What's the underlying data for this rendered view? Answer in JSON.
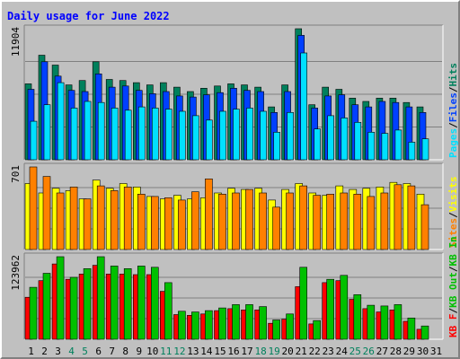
{
  "chart_data": {
    "type": "bar",
    "title": "Daily usage for June 2022",
    "days": [
      "1",
      "2",
      "3",
      "4",
      "5",
      "6",
      "7",
      "8",
      "9",
      "10",
      "11",
      "12",
      "13",
      "14",
      "15",
      "16",
      "17",
      "18",
      "19",
      "20",
      "21",
      "22",
      "23",
      "24",
      "25",
      "26",
      "27",
      "28",
      "29",
      "30",
      "31"
    ],
    "weekend_days": [
      "4",
      "5",
      "11",
      "12",
      "18",
      "19",
      "25",
      "26"
    ],
    "colors": {
      "hits": "#00805c",
      "files": "#0040ff",
      "pages": "#00e0ff",
      "visits": "#ffff00",
      "sites": "#ff8000",
      "kb_in": "#00c000",
      "kb_out": "#ff0000",
      "title": "#0000ff",
      "weekday_label": "#000000",
      "weekend_label": "#00805c",
      "gridline": "#808080"
    },
    "panels": [
      {
        "id": "usage",
        "max_label": "11904",
        "max_value": 11904,
        "legend": [
          {
            "text": "Hits",
            "color": "#00805c"
          },
          {
            "text": "Files",
            "color": "#0040ff"
          },
          {
            "text": "Pages",
            "color": "#00e0ff"
          }
        ],
        "separators": [
          "/",
          "/"
        ],
        "series": [
          {
            "name": "Hits",
            "color": "#00805c",
            "values": [
              6900,
              9500,
              8600,
              6800,
              7200,
              8900,
              7300,
              7200,
              7000,
              6800,
              7000,
              6600,
              6200,
              6500,
              6700,
              6900,
              6800,
              6600,
              4800,
              6800,
              11904,
              5000,
              6600,
              6400,
              5600,
              5300,
              5600,
              5600,
              5200,
              4800,
              0
            ]
          },
          {
            "name": "Files",
            "color": "#0040ff",
            "values": [
              6400,
              8900,
              7600,
              6300,
              6200,
              7800,
              6600,
              6700,
              6300,
              6000,
              6200,
              5800,
              5700,
              5900,
              6100,
              6500,
              6300,
              6200,
              4300,
              6200,
              11300,
              4700,
              5800,
              5900,
              5000,
              4800,
              5300,
              5200,
              4800,
              4300,
              0
            ]
          },
          {
            "name": "Pages",
            "color": "#00e0ff",
            "values": [
              3500,
              5000,
              7000,
              4700,
              5300,
              5200,
              4700,
              4500,
              4800,
              4700,
              4600,
              4400,
              4000,
              3600,
              4400,
              4600,
              4700,
              4400,
              2500,
              4300,
              9700,
              2800,
              4000,
              3800,
              3400,
              2500,
              2400,
              2700,
              1600,
              1900,
              0
            ]
          }
        ]
      },
      {
        "id": "visits",
        "max_label": "701",
        "max_value": 701,
        "legend": [
          {
            "text": "Visits",
            "color": "#ffff00"
          },
          {
            "text": "Sites",
            "color": "#ff8000"
          }
        ],
        "separators": [
          "/"
        ],
        "series": [
          {
            "name": "Visits",
            "color": "#ffff00",
            "values": [
              560,
              480,
              520,
              500,
              430,
              590,
              520,
              560,
              530,
              450,
              430,
              460,
              430,
              440,
              480,
              520,
              510,
              520,
              420,
              510,
              560,
              480,
              460,
              540,
              510,
              520,
              530,
              570,
              560,
              470,
              0
            ]
          },
          {
            "name": "Sites",
            "color": "#ff8000",
            "values": [
              701,
              620,
              480,
              530,
              430,
              540,
              500,
              530,
              470,
              450,
              440,
              420,
              490,
              600,
              470,
              480,
              510,
              480,
              360,
              480,
              540,
              460,
              470,
              480,
              470,
              450,
              480,
              550,
              540,
              380,
              0
            ]
          }
        ]
      },
      {
        "id": "kbytes",
        "max_label": "123962",
        "max_value": 123962,
        "legend": [
          {
            "text": "KB In",
            "color": "#00c000"
          },
          {
            "text": "KB Out",
            "color": "#00c000"
          },
          {
            "text": "KB F",
            "color": "#ff0000"
          }
        ],
        "separators": [
          "/",
          "/"
        ],
        "series": [
          {
            "name": "KB Out",
            "color": "#ff0000",
            "values": [
              63000,
              88000,
              113000,
              90000,
              98000,
              111000,
              98000,
              98000,
              97000,
              97000,
              72000,
              37000,
              36000,
              38000,
              43000,
              46000,
              44000,
              44000,
              24000,
              30000,
              79000,
              23000,
              85000,
              88000,
              60000,
              46000,
              41000,
              44000,
              27000,
              15000,
              0
            ]
          },
          {
            "name": "KB In",
            "color": "#00c000",
            "values": [
              78000,
              99000,
              123962,
              93000,
              106000,
              123962,
              110000,
              106000,
              110000,
              108000,
              85000,
              42000,
              41000,
              43000,
              47000,
              52000,
              52000,
              49000,
              29000,
              38000,
              108000,
              28000,
              90000,
              96000,
              67000,
              51000,
              50000,
              52000,
              32000,
              20000,
              0
            ]
          }
        ]
      }
    ]
  }
}
